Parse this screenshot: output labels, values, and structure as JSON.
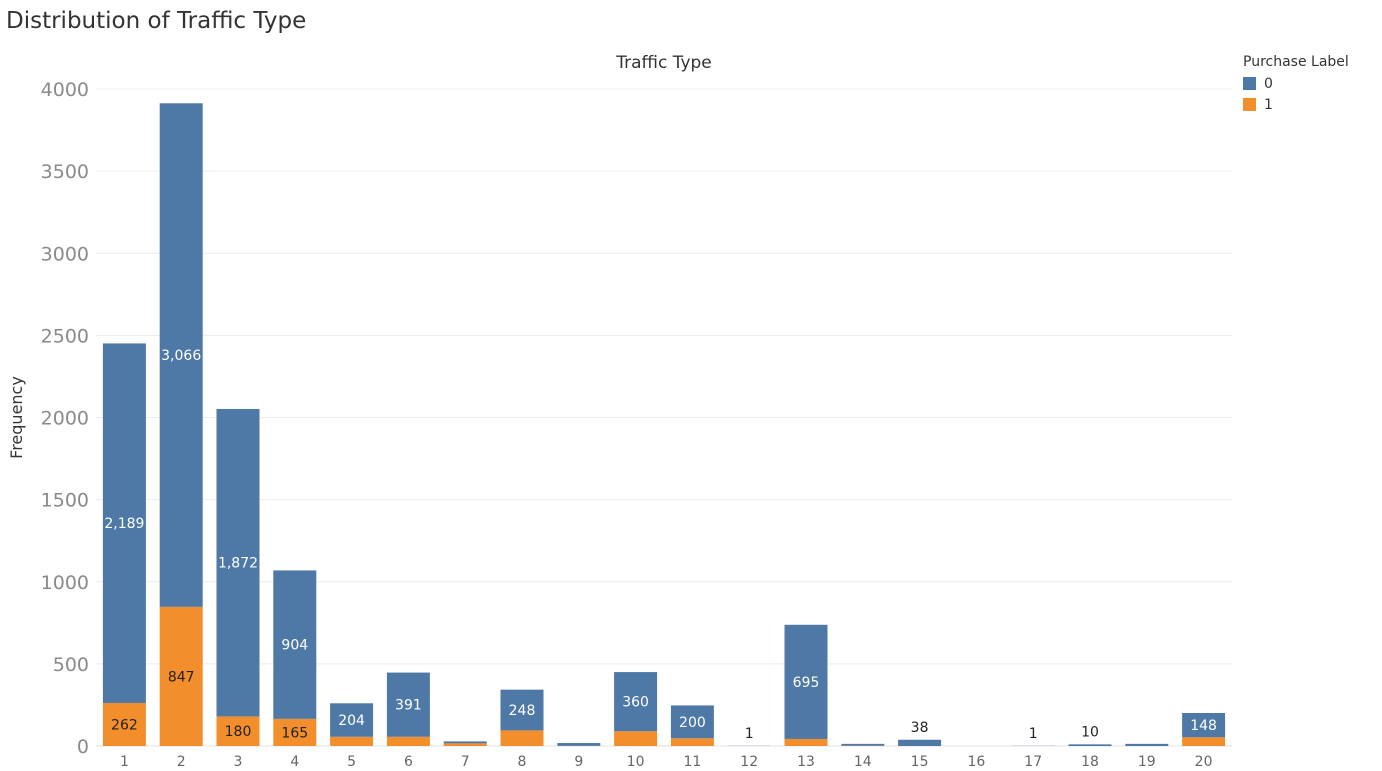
{
  "title": "Distribution of Traffic Type",
  "legend": {
    "title": "Purchase Label",
    "items": [
      {
        "label": "0",
        "color": "#4e79a7"
      },
      {
        "label": "1",
        "color": "#f28e2b"
      }
    ]
  },
  "chart_data": {
    "type": "bar",
    "stacked": true,
    "title": "Traffic Type",
    "xlabel": "",
    "ylabel": "Frequency",
    "ylim": [
      0,
      4000
    ],
    "yticks": [
      0,
      500,
      1000,
      1500,
      2000,
      2500,
      3000,
      3500,
      4000
    ],
    "grid": true,
    "legend_position": "top-right",
    "categories": [
      "1",
      "2",
      "3",
      "4",
      "5",
      "6",
      "7",
      "8",
      "9",
      "10",
      "11",
      "12",
      "13",
      "14",
      "15",
      "16",
      "17",
      "18",
      "19",
      "20"
    ],
    "series": [
      {
        "name": "0",
        "color": "#4e79a7",
        "values": [
          2189,
          3066,
          1872,
          904,
          204,
          391,
          12,
          248,
          17,
          360,
          200,
          1,
          695,
          11,
          38,
          0,
          1,
          10,
          13,
          148
        ],
        "labels": [
          "2,189",
          "3,066",
          "1,872",
          "904",
          "204",
          "391",
          "",
          "248",
          "",
          "360",
          "200",
          "1",
          "695",
          "",
          "38",
          "",
          "1",
          "10",
          "",
          "148"
        ]
      },
      {
        "name": "1",
        "color": "#f28e2b",
        "values": [
          262,
          847,
          180,
          165,
          56,
          56,
          16,
          95,
          1,
          90,
          47,
          0,
          43,
          2,
          0,
          0,
          0,
          0,
          0,
          53
        ],
        "labels": [
          "262",
          "847",
          "180",
          "165",
          "",
          "",
          "",
          "",
          "",
          "",
          "",
          "",
          "",
          "",
          "",
          "",
          "",
          "",
          "",
          ""
        ]
      }
    ]
  }
}
